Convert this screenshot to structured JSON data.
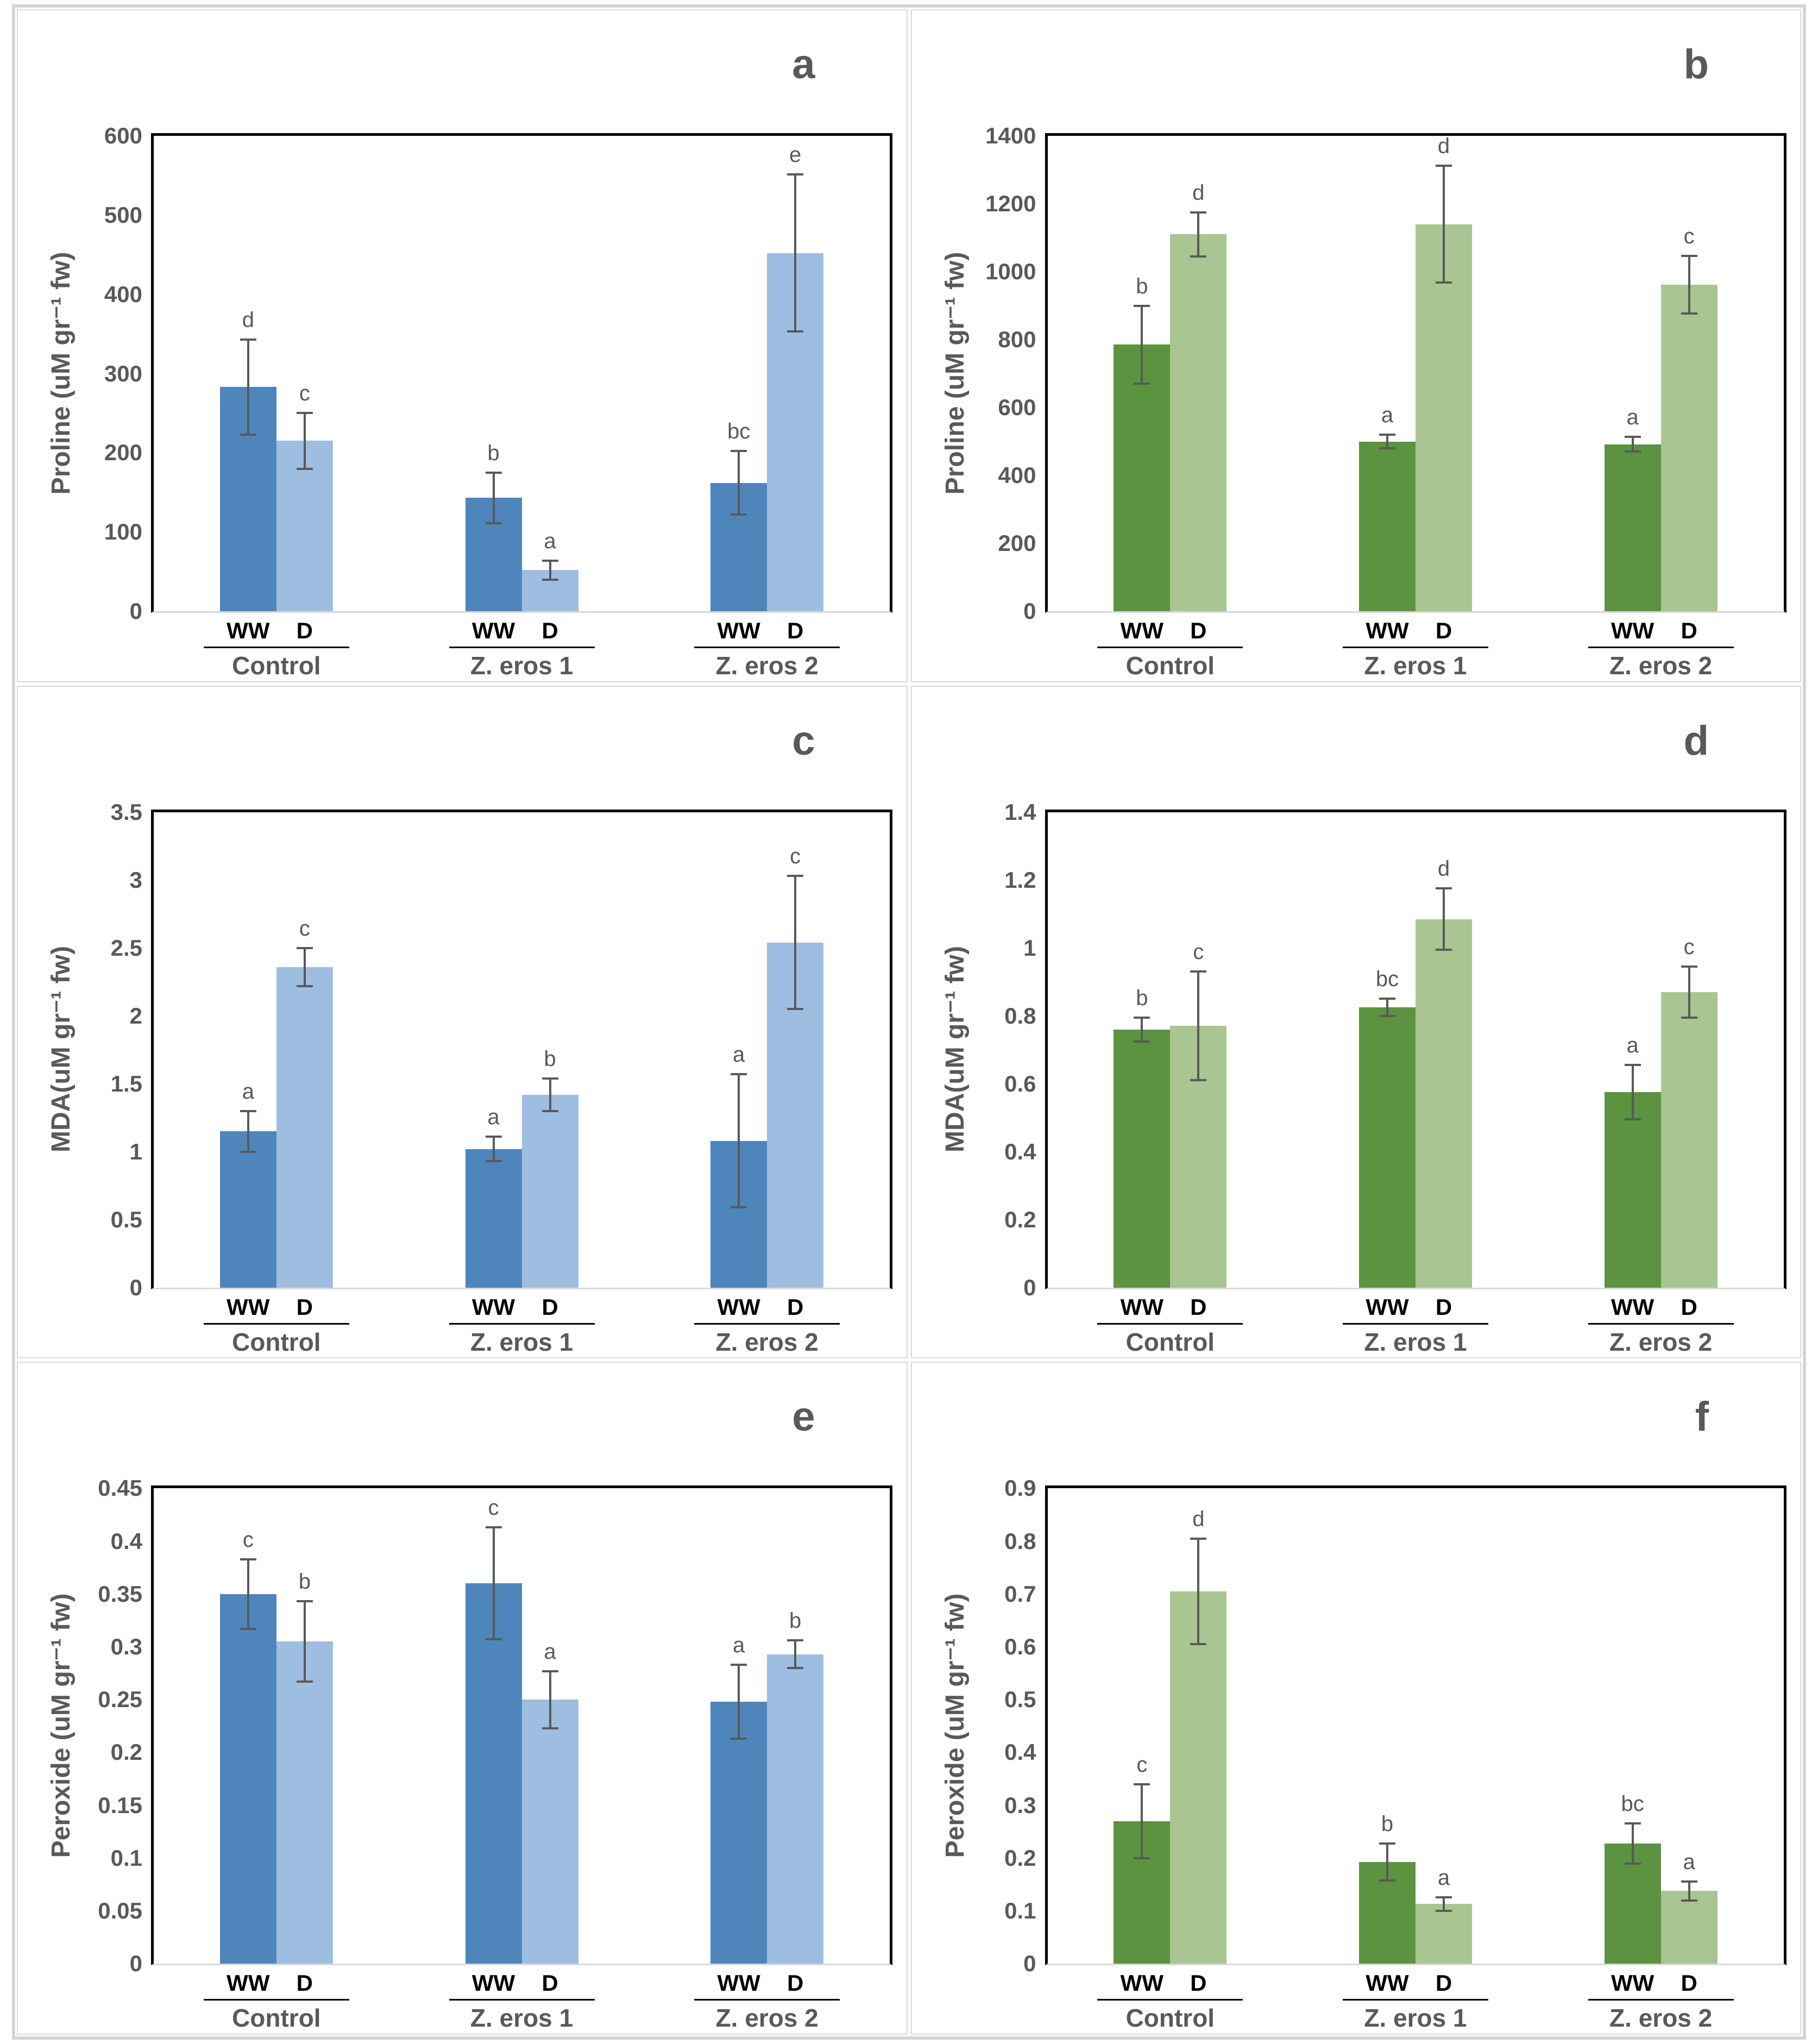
{
  "palette": {
    "blue_ww": "#4E86BC",
    "blue_d": "#9EBEE1",
    "green_ww": "#5B9340",
    "green_d": "#A9C591",
    "error_bar": "#595959",
    "text": "#595959",
    "condition_text": "#000000",
    "axis_border": "#000000",
    "baseline": "#D9D9D9",
    "panel_border": "#D9D9D9",
    "frame_border": "#D4D4D4"
  },
  "chart_data": [
    {
      "type": "bar",
      "panel_letter": "a",
      "title": "",
      "xlabel": "",
      "ylabel": "Proline (uM gr⁻¹ fw)",
      "ylim": [
        0,
        600
      ],
      "ystep": 100,
      "grid": false,
      "legend": "none",
      "categories": [
        "Control",
        "Z. eros 1",
        "Z. eros 2"
      ],
      "series": [
        {
          "name": "WW",
          "values": [
            283,
            143,
            162
          ],
          "errors": [
            60,
            32,
            40
          ],
          "sig_letters": [
            "d",
            "b",
            "bc"
          ]
        },
        {
          "name": "D",
          "values": [
            215,
            52,
            452
          ],
          "errors": [
            35,
            12,
            99
          ],
          "sig_letters": [
            "c",
            "a",
            "e"
          ]
        }
      ],
      "colors": {
        "WW": "#4E86BC",
        "D": "#9EBEE1"
      }
    },
    {
      "type": "bar",
      "panel_letter": "b",
      "title": "",
      "xlabel": "",
      "ylabel": "Proline (uM gr⁻¹ fw)",
      "ylim": [
        0,
        1400
      ],
      "ystep": 200,
      "grid": false,
      "legend": "none",
      "categories": [
        "Control",
        "Z. eros 1",
        "Z. eros 2"
      ],
      "series": [
        {
          "name": "WW",
          "values": [
            785,
            500,
            492
          ],
          "errors": [
            115,
            20,
            22
          ],
          "sig_letters": [
            "b",
            "a",
            "a"
          ]
        },
        {
          "name": "D",
          "values": [
            1110,
            1140,
            962
          ],
          "errors": [
            65,
            172,
            85
          ],
          "sig_letters": [
            "d",
            "d",
            "c"
          ]
        }
      ],
      "colors": {
        "WW": "#5B9340",
        "D": "#A9C591"
      }
    },
    {
      "type": "bar",
      "panel_letter": "c",
      "title": "",
      "xlabel": "",
      "ylabel": "MDA(uM gr⁻¹ fw)",
      "ylim": [
        0,
        3.5
      ],
      "ystep": 0.5,
      "grid": false,
      "legend": "none",
      "categories": [
        "Control",
        "Z. eros 1",
        "Z. eros 2"
      ],
      "series": [
        {
          "name": "WW",
          "values": [
            1.15,
            1.02,
            1.08
          ],
          "errors": [
            0.15,
            0.09,
            0.49
          ],
          "sig_letters": [
            "a",
            "a",
            "a"
          ]
        },
        {
          "name": "D",
          "values": [
            2.36,
            1.42,
            2.54
          ],
          "errors": [
            0.14,
            0.12,
            0.49
          ],
          "sig_letters": [
            "c",
            "b",
            "c"
          ]
        }
      ],
      "colors": {
        "WW": "#4E86BC",
        "D": "#9EBEE1"
      }
    },
    {
      "type": "bar",
      "panel_letter": "d",
      "title": "",
      "xlabel": "",
      "ylabel": "MDA(uM gr⁻¹ fw)",
      "ylim": [
        0,
        1.4
      ],
      "ystep": 0.2,
      "grid": false,
      "legend": "none",
      "categories": [
        "Control",
        "Z. eros 1",
        "Z. eros 2"
      ],
      "series": [
        {
          "name": "WW",
          "values": [
            0.76,
            0.825,
            0.575
          ],
          "errors": [
            0.035,
            0.025,
            0.08
          ],
          "sig_letters": [
            "b",
            "bc",
            "a"
          ]
        },
        {
          "name": "D",
          "values": [
            0.77,
            1.085,
            0.87
          ],
          "errors": [
            0.16,
            0.09,
            0.075
          ],
          "sig_letters": [
            "c",
            "d",
            "c"
          ]
        }
      ],
      "colors": {
        "WW": "#5B9340",
        "D": "#A9C591"
      }
    },
    {
      "type": "bar",
      "panel_letter": "e",
      "title": "",
      "xlabel": "",
      "ylabel": "Peroxide (uM gr⁻¹ fw)",
      "ylim": [
        0,
        0.45
      ],
      "ystep": 0.05,
      "grid": false,
      "legend": "none",
      "categories": [
        "Control",
        "Z. eros 1",
        "Z. eros 2"
      ],
      "series": [
        {
          "name": "WW",
          "values": [
            0.35,
            0.36,
            0.248
          ],
          "errors": [
            0.033,
            0.053,
            0.035
          ],
          "sig_letters": [
            "c",
            "c",
            "a"
          ]
        },
        {
          "name": "D",
          "values": [
            0.305,
            0.25,
            0.293
          ],
          "errors": [
            0.038,
            0.027,
            0.013
          ],
          "sig_letters": [
            "b",
            "a",
            "b"
          ]
        }
      ],
      "colors": {
        "WW": "#4E86BC",
        "D": "#9EBEE1"
      }
    },
    {
      "type": "bar",
      "panel_letter": "f",
      "title": "",
      "xlabel": "",
      "ylabel": "Peroxide (uM gr⁻¹ fw)",
      "ylim": [
        0,
        0.9
      ],
      "ystep": 0.1,
      "grid": false,
      "legend": "none",
      "categories": [
        "Control",
        "Z. eros 1",
        "Z. eros 2"
      ],
      "series": [
        {
          "name": "WW",
          "values": [
            0.27,
            0.193,
            0.228
          ],
          "errors": [
            0.07,
            0.035,
            0.038
          ],
          "sig_letters": [
            "c",
            "b",
            "bc"
          ]
        },
        {
          "name": "D",
          "values": [
            0.705,
            0.113,
            0.138
          ],
          "errors": [
            0.1,
            0.013,
            0.018
          ],
          "sig_letters": [
            "d",
            "a",
            "a"
          ]
        }
      ],
      "colors": {
        "WW": "#5B9340",
        "D": "#A9C591"
      }
    }
  ]
}
